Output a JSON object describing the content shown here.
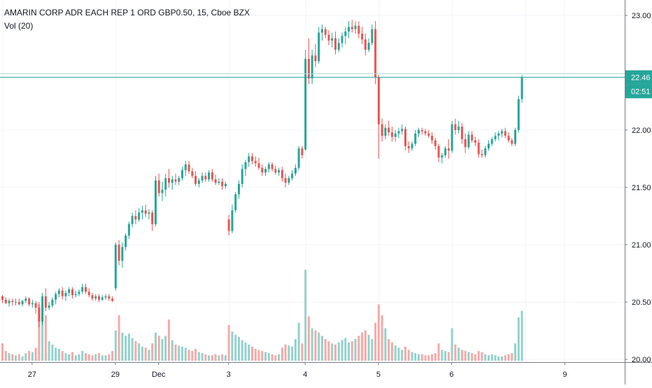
{
  "chart_data": {
    "type": "candlestick",
    "title": "AMARIN CORP ADR EACH REP 1 ORD GBP0.50, 15, Cboe BZX",
    "indicator": "Vol (20)",
    "price_axis": {
      "ylim": [
        19.97,
        23.12
      ],
      "ticks": [
        "23.00",
        "22.50",
        "22.00",
        "21.50",
        "21.00",
        "20.50",
        "20.00"
      ]
    },
    "time_axis": {
      "labels": [
        "27",
        "29",
        "Dec",
        "3",
        "4",
        "5",
        "6",
        "9"
      ]
    },
    "last_price": "22.46",
    "countdown": "02:51",
    "colors": {
      "up": "#26a69a",
      "down": "#ef5350",
      "up_volume": "#93d2cc",
      "down_volume": "#f7a9a7",
      "grid": "#f0f3fa",
      "price_line": "#26a69a"
    },
    "grid": true,
    "volume_scale_max": 1000,
    "candles": [
      [
        20.55,
        20.56,
        20.49,
        20.52,
        160
      ],
      [
        20.52,
        20.54,
        20.48,
        20.49,
        90
      ],
      [
        20.49,
        20.53,
        20.46,
        20.51,
        70
      ],
      [
        20.51,
        20.53,
        20.47,
        20.5,
        60
      ],
      [
        20.5,
        20.53,
        20.47,
        20.5,
        50
      ],
      [
        20.5,
        20.53,
        20.47,
        20.48,
        60
      ],
      [
        20.48,
        20.52,
        20.46,
        20.51,
        40
      ],
      [
        20.51,
        20.55,
        20.49,
        20.53,
        70
      ],
      [
        20.53,
        20.54,
        20.46,
        20.48,
        90
      ],
      [
        20.48,
        20.52,
        20.45,
        20.49,
        80
      ],
      [
        20.49,
        20.51,
        20.4,
        20.45,
        120
      ],
      [
        20.45,
        20.5,
        20.28,
        20.33,
        520
      ],
      [
        20.33,
        20.58,
        20.3,
        20.55,
        500
      ],
      [
        20.55,
        20.62,
        20.42,
        20.45,
        420
      ],
      [
        20.45,
        20.5,
        20.43,
        20.47,
        180
      ],
      [
        20.47,
        20.54,
        20.45,
        20.52,
        150
      ],
      [
        20.52,
        20.59,
        20.48,
        20.57,
        120
      ],
      [
        20.57,
        20.62,
        20.54,
        20.6,
        110
      ],
      [
        20.6,
        20.63,
        20.52,
        20.55,
        90
      ],
      [
        20.55,
        20.6,
        20.51,
        20.58,
        70
      ],
      [
        20.58,
        20.63,
        20.55,
        20.61,
        60
      ],
      [
        20.61,
        20.63,
        20.53,
        20.56,
        80
      ],
      [
        20.56,
        20.6,
        20.54,
        20.57,
        50
      ],
      [
        20.57,
        20.61,
        20.55,
        20.59,
        60
      ],
      [
        20.59,
        20.66,
        20.57,
        20.63,
        90
      ],
      [
        20.63,
        20.66,
        20.57,
        20.59,
        70
      ],
      [
        20.59,
        20.62,
        20.54,
        20.56,
        60
      ],
      [
        20.56,
        20.58,
        20.51,
        20.53,
        50
      ],
      [
        20.53,
        20.57,
        20.51,
        20.55,
        60
      ],
      [
        20.55,
        20.57,
        20.5,
        20.52,
        70
      ],
      [
        20.52,
        20.56,
        20.51,
        20.54,
        50
      ],
      [
        20.54,
        20.57,
        20.52,
        20.55,
        50
      ],
      [
        20.55,
        20.57,
        20.51,
        20.53,
        60
      ],
      [
        20.53,
        20.55,
        20.5,
        20.51,
        90
      ],
      [
        20.62,
        21.02,
        20.6,
        21.0,
        280
      ],
      [
        21.0,
        21.04,
        20.82,
        20.86,
        420
      ],
      [
        20.86,
        21.02,
        20.8,
        20.98,
        260
      ],
      [
        20.98,
        21.1,
        20.95,
        21.08,
        230
      ],
      [
        21.08,
        21.2,
        21.05,
        21.18,
        250
      ],
      [
        21.18,
        21.28,
        21.15,
        21.25,
        210
      ],
      [
        21.25,
        21.3,
        21.18,
        21.22,
        180
      ],
      [
        21.22,
        21.32,
        21.2,
        21.28,
        160
      ],
      [
        21.28,
        21.34,
        21.22,
        21.3,
        130
      ],
      [
        21.3,
        21.35,
        21.24,
        21.27,
        120
      ],
      [
        21.27,
        21.31,
        21.22,
        21.28,
        100
      ],
      [
        21.28,
        21.3,
        21.12,
        21.18,
        160
      ],
      [
        21.18,
        21.6,
        21.16,
        21.56,
        260
      ],
      [
        21.56,
        21.62,
        21.42,
        21.45,
        230
      ],
      [
        21.45,
        21.55,
        21.38,
        21.48,
        200
      ],
      [
        21.48,
        21.62,
        21.42,
        21.58,
        230
      ],
      [
        21.58,
        21.66,
        21.5,
        21.54,
        380
      ],
      [
        21.54,
        21.6,
        21.48,
        21.57,
        190
      ],
      [
        21.57,
        21.62,
        21.52,
        21.55,
        150
      ],
      [
        21.55,
        21.6,
        21.52,
        21.58,
        140
      ],
      [
        21.58,
        21.68,
        21.56,
        21.65,
        130
      ],
      [
        21.65,
        21.73,
        21.6,
        21.7,
        120
      ],
      [
        21.7,
        21.73,
        21.62,
        21.64,
        100
      ],
      [
        21.64,
        21.67,
        21.58,
        21.6,
        90
      ],
      [
        21.6,
        21.64,
        21.51,
        21.53,
        110
      ],
      [
        21.53,
        21.58,
        21.5,
        21.56,
        80
      ],
      [
        21.56,
        21.63,
        21.54,
        21.6,
        70
      ],
      [
        21.6,
        21.63,
        21.55,
        21.57,
        60
      ],
      [
        21.57,
        21.65,
        21.55,
        21.63,
        50
      ],
      [
        21.63,
        21.66,
        21.55,
        21.57,
        50
      ],
      [
        21.57,
        21.61,
        21.52,
        21.54,
        60
      ],
      [
        21.54,
        21.58,
        21.52,
        21.55,
        50
      ],
      [
        21.55,
        21.58,
        21.48,
        21.51,
        60
      ],
      [
        21.51,
        21.55,
        21.49,
        21.53,
        50
      ],
      [
        21.22,
        21.26,
        21.08,
        21.12,
        330
      ],
      [
        21.12,
        21.35,
        21.1,
        21.3,
        270
      ],
      [
        21.3,
        21.46,
        21.28,
        21.44,
        240
      ],
      [
        21.44,
        21.56,
        21.4,
        21.53,
        220
      ],
      [
        21.53,
        21.7,
        21.5,
        21.66,
        190
      ],
      [
        21.66,
        21.74,
        21.6,
        21.72,
        170
      ],
      [
        21.72,
        21.8,
        21.68,
        21.77,
        150
      ],
      [
        21.77,
        21.8,
        21.7,
        21.73,
        130
      ],
      [
        21.73,
        21.77,
        21.68,
        21.71,
        110
      ],
      [
        21.71,
        21.76,
        21.65,
        21.67,
        100
      ],
      [
        21.67,
        21.7,
        21.6,
        21.63,
        90
      ],
      [
        21.63,
        21.68,
        21.6,
        21.66,
        80
      ],
      [
        21.66,
        21.72,
        21.63,
        21.7,
        70
      ],
      [
        21.7,
        21.72,
        21.64,
        21.66,
        60
      ],
      [
        21.66,
        21.69,
        21.61,
        21.63,
        50
      ],
      [
        21.63,
        21.67,
        21.6,
        21.65,
        60
      ],
      [
        21.65,
        21.68,
        21.55,
        21.58,
        120
      ],
      [
        21.58,
        21.62,
        21.5,
        21.54,
        150
      ],
      [
        21.54,
        21.6,
        21.52,
        21.58,
        140
      ],
      [
        21.58,
        21.65,
        21.56,
        21.62,
        130
      ],
      [
        21.62,
        21.7,
        21.6,
        21.67,
        200
      ],
      [
        21.67,
        21.86,
        21.65,
        21.84,
        350
      ],
      [
        21.84,
        21.86,
        21.75,
        21.78,
        160
      ],
      [
        21.83,
        22.7,
        21.82,
        22.62,
        840
      ],
      [
        22.62,
        22.8,
        22.4,
        22.45,
        410
      ],
      [
        22.45,
        22.7,
        22.4,
        22.65,
        300
      ],
      [
        22.65,
        22.75,
        22.55,
        22.6,
        280
      ],
      [
        22.6,
        22.9,
        22.58,
        22.85,
        260
      ],
      [
        22.85,
        22.92,
        22.78,
        22.88,
        230
      ],
      [
        22.88,
        22.9,
        22.8,
        22.83,
        200
      ],
      [
        22.83,
        22.87,
        22.74,
        22.78,
        180
      ],
      [
        22.78,
        22.85,
        22.72,
        22.8,
        160
      ],
      [
        22.8,
        22.86,
        22.66,
        22.7,
        150
      ],
      [
        22.7,
        22.8,
        22.68,
        22.76,
        170
      ],
      [
        22.76,
        22.85,
        22.72,
        22.82,
        190
      ],
      [
        22.82,
        22.9,
        22.75,
        22.86,
        210
      ],
      [
        22.86,
        22.95,
        22.8,
        22.9,
        170
      ],
      [
        22.9,
        22.96,
        22.85,
        22.88,
        180
      ],
      [
        22.88,
        22.95,
        22.84,
        22.91,
        200
      ],
      [
        22.91,
        22.95,
        22.8,
        22.84,
        230
      ],
      [
        22.84,
        22.9,
        22.75,
        22.79,
        260
      ],
      [
        22.79,
        22.84,
        22.65,
        22.7,
        280
      ],
      [
        22.7,
        22.8,
        22.68,
        22.76,
        240
      ],
      [
        22.76,
        22.92,
        22.74,
        22.88,
        200
      ],
      [
        22.88,
        22.95,
        22.4,
        22.46,
        350
      ],
      [
        22.46,
        22.48,
        21.75,
        22.05,
        520
      ],
      [
        22.05,
        22.1,
        21.9,
        21.95,
        420
      ],
      [
        21.95,
        22.05,
        21.92,
        22.02,
        300
      ],
      [
        22.02,
        22.08,
        21.95,
        21.98,
        200
      ],
      [
        21.98,
        22.03,
        21.9,
        21.94,
        170
      ],
      [
        21.94,
        22.0,
        21.9,
        21.97,
        140
      ],
      [
        21.97,
        22.02,
        21.93,
        21.99,
        120
      ],
      [
        21.99,
        22.05,
        21.96,
        22.01,
        100
      ],
      [
        22.01,
        22.03,
        21.82,
        21.86,
        130
      ],
      [
        21.86,
        21.9,
        21.8,
        21.84,
        100
      ],
      [
        21.84,
        21.9,
        21.82,
        21.88,
        80
      ],
      [
        21.88,
        22.0,
        21.86,
        21.97,
        70
      ],
      [
        21.97,
        22.02,
        21.94,
        22.0,
        60
      ],
      [
        22.0,
        22.02,
        21.96,
        21.99,
        60
      ],
      [
        21.99,
        22.01,
        21.95,
        21.97,
        50
      ],
      [
        21.97,
        22.0,
        21.93,
        21.95,
        50
      ],
      [
        21.95,
        21.98,
        21.88,
        21.91,
        60
      ],
      [
        21.91,
        21.93,
        21.83,
        21.86,
        70
      ],
      [
        21.86,
        21.88,
        21.72,
        21.76,
        160
      ],
      [
        21.76,
        21.8,
        21.71,
        21.78,
        100
      ],
      [
        21.78,
        21.86,
        21.76,
        21.84,
        90
      ],
      [
        21.84,
        21.92,
        21.75,
        21.82,
        80
      ],
      [
        21.82,
        22.08,
        21.8,
        22.05,
        300
      ],
      [
        22.05,
        22.1,
        21.96,
        22.0,
        150
      ],
      [
        22.0,
        22.08,
        21.97,
        22.03,
        120
      ],
      [
        22.03,
        22.06,
        21.88,
        21.92,
        100
      ],
      [
        21.92,
        21.97,
        21.8,
        21.85,
        90
      ],
      [
        21.85,
        21.99,
        21.83,
        21.96,
        80
      ],
      [
        21.96,
        21.99,
        21.89,
        21.91,
        70
      ],
      [
        21.91,
        21.94,
        21.86,
        21.89,
        60
      ],
      [
        21.89,
        21.92,
        21.76,
        21.79,
        90
      ],
      [
        21.79,
        21.83,
        21.76,
        21.78,
        80
      ],
      [
        21.78,
        21.86,
        21.76,
        21.84,
        60
      ],
      [
        21.84,
        21.91,
        21.82,
        21.88,
        50
      ],
      [
        21.88,
        21.94,
        21.86,
        21.92,
        60
      ],
      [
        21.92,
        21.98,
        21.9,
        21.95,
        50
      ],
      [
        21.95,
        21.99,
        21.91,
        21.97,
        40
      ],
      [
        21.97,
        22.01,
        21.94,
        21.99,
        40
      ],
      [
        21.99,
        22.02,
        21.93,
        21.95,
        50
      ],
      [
        21.95,
        21.98,
        21.89,
        21.91,
        60
      ],
      [
        21.91,
        21.93,
        21.86,
        21.88,
        70
      ],
      [
        21.88,
        22.02,
        21.86,
        22.0,
        160
      ],
      [
        22.0,
        22.3,
        21.98,
        22.27,
        400
      ],
      [
        22.27,
        22.48,
        22.24,
        22.46,
        460
      ]
    ]
  }
}
